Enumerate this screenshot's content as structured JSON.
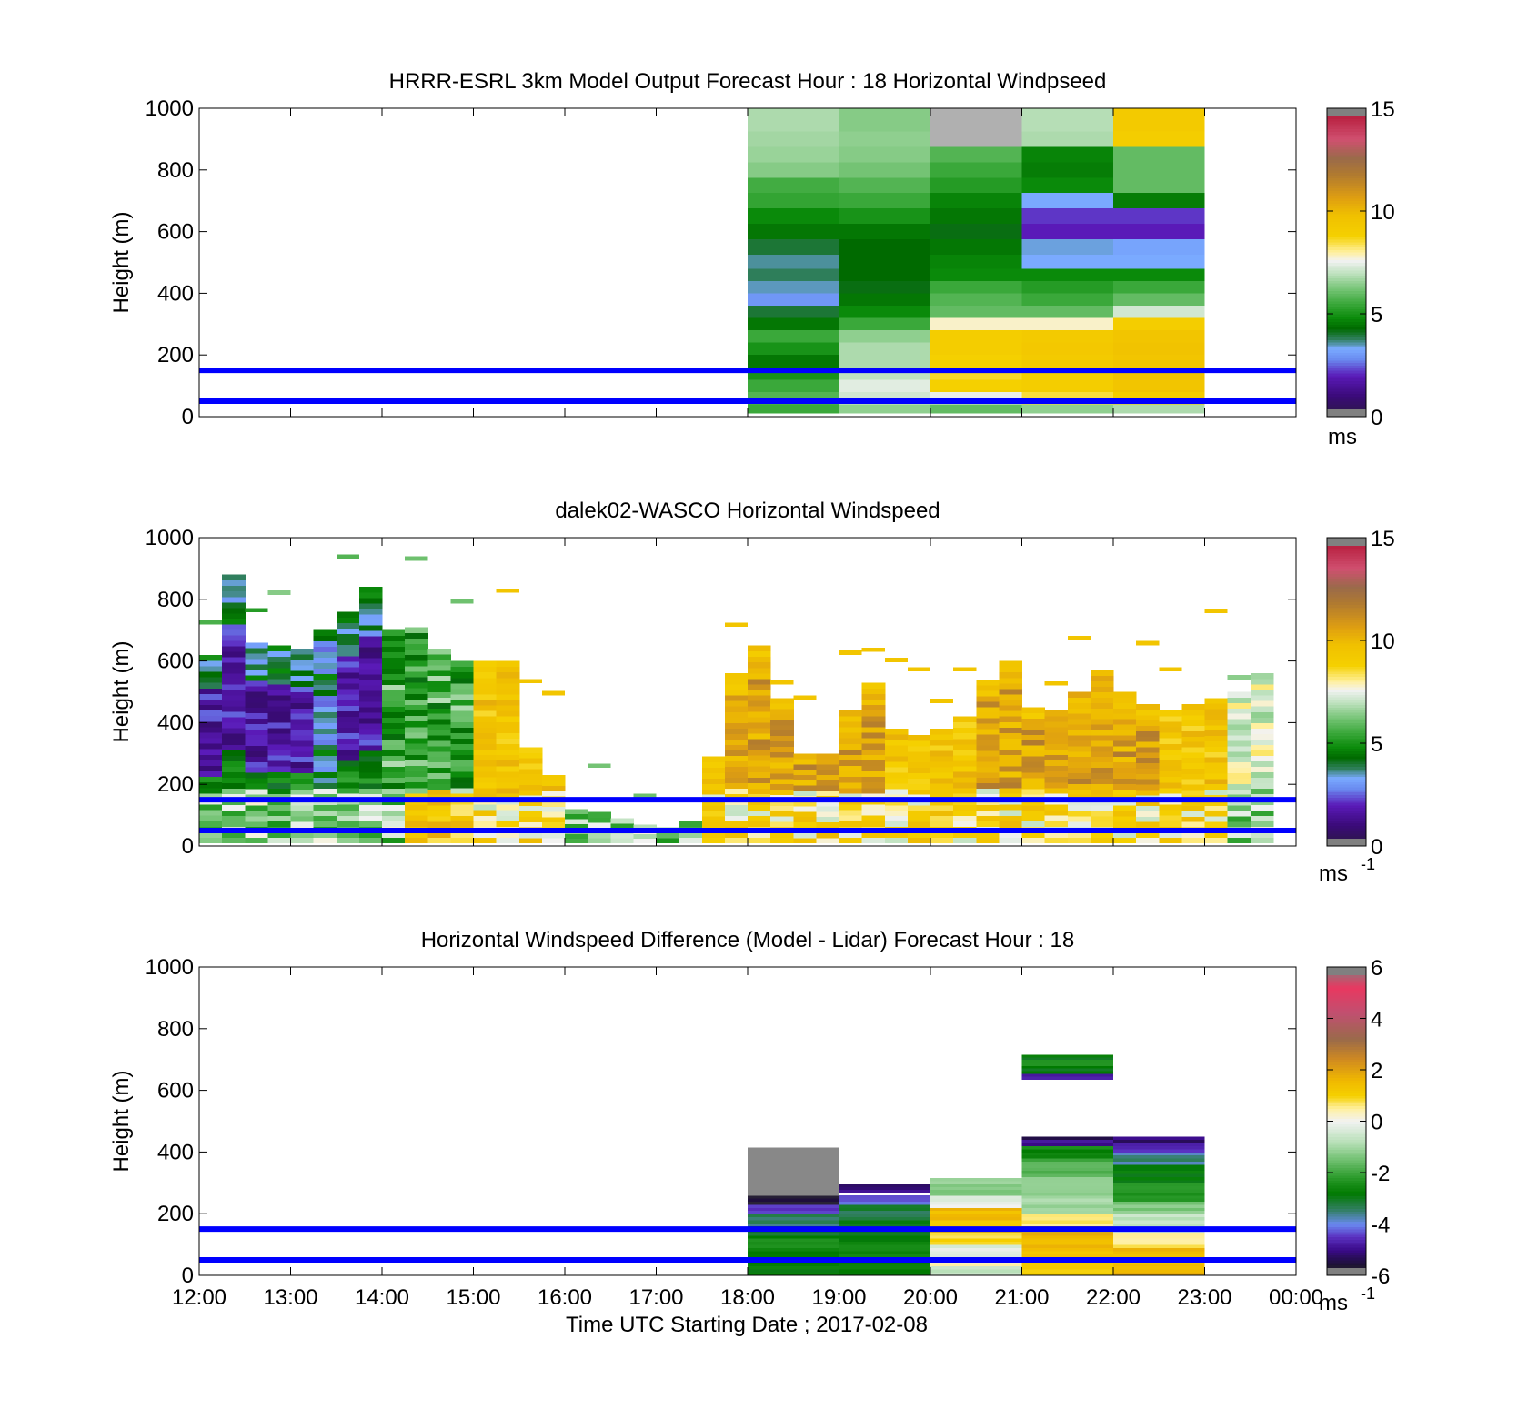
{
  "colors": {
    "ref_line": "#0000ff",
    "speed_colormap": [
      "#1a1030",
      "#3a0a78",
      "#5a1ab8",
      "#6a8af0",
      "#9fc8ff",
      "#2e8b57",
      "#006400",
      "#0a8a0a",
      "#3aa83a",
      "#7cc77c",
      "#c8e6c8",
      "#f0f0f0",
      "#fff2a8",
      "#f5d000",
      "#e8a800",
      "#c8821a",
      "#9a6a3a",
      "#c86070",
      "#e83860",
      "#a0a0a0"
    ],
    "diff_colormap": [
      "#808080",
      "#1a1030",
      "#4a14a0",
      "#6a8af0",
      "#2e8b57",
      "#007a00",
      "#3aa83a",
      "#a8d8a8",
      "#f0f0f0",
      "#fff2a8",
      "#f5d000",
      "#e8a800",
      "#c8821a",
      "#9a6a3a",
      "#e83860",
      "#808080"
    ]
  },
  "chart_data": [
    {
      "type": "heatmap",
      "title": "HRRR-ESRL 3km Model Output   Forecast Hour : 18 Horizontal Windpseed",
      "ylabel": "Height (m)",
      "xlabel": "",
      "ylim": [
        0,
        1000
      ],
      "yticks": [
        "0",
        "200",
        "400",
        "600",
        "800",
        "1000"
      ],
      "xlim": [
        "12:00",
        "00:00"
      ],
      "x_hours": [
        18,
        19,
        20,
        21,
        22
      ],
      "y_bins": [
        20,
        60,
        100,
        140,
        180,
        220,
        260,
        300,
        340,
        380,
        420,
        460,
        500,
        550,
        600,
        650,
        700,
        750,
        800,
        850,
        900,
        950
      ],
      "values": [
        [
          5.5,
          6.5,
          6.0,
          6.5,
          6.8
        ],
        [
          5.8,
          7.2,
          7.5,
          8.5,
          9.0
        ],
        [
          5.5,
          7.4,
          8.8,
          9.0,
          9.5
        ],
        [
          5.0,
          7.0,
          8.6,
          9.0,
          9.6
        ],
        [
          4.5,
          6.8,
          8.8,
          9.2,
          9.5
        ],
        [
          5.0,
          6.8,
          9.0,
          9.3,
          9.6
        ],
        [
          5.5,
          6.5,
          9.0,
          9.2,
          9.5
        ],
        [
          4.5,
          5.5,
          7.8,
          7.8,
          9.0
        ],
        [
          4.0,
          4.8,
          6.0,
          6.0,
          7.2
        ],
        [
          3.0,
          4.5,
          5.8,
          5.5,
          6.0
        ],
        [
          3.5,
          4.2,
          5.5,
          5.2,
          5.5
        ],
        [
          3.8,
          4.3,
          4.8,
          4.8,
          4.8
        ],
        [
          3.6,
          4.3,
          4.7,
          3.3,
          3.3
        ],
        [
          4.0,
          4.3,
          4.5,
          3.4,
          3.2
        ],
        [
          4.5,
          4.5,
          4.2,
          2.0,
          2.0
        ],
        [
          4.8,
          5.0,
          4.5,
          2.2,
          2.2
        ],
        [
          5.4,
          5.5,
          4.7,
          3.3,
          4.6
        ],
        [
          5.6,
          5.8,
          5.2,
          4.8,
          6.0
        ],
        [
          6.4,
          6.2,
          5.5,
          4.6,
          6.0
        ],
        [
          6.6,
          6.4,
          5.8,
          4.7,
          6.0
        ],
        [
          6.7,
          6.5,
          19.0,
          6.8,
          9.0
        ],
        [
          6.8,
          6.4,
          19.0,
          6.9,
          9.2
        ]
      ],
      "colorbar": {
        "ticks": [
          "0",
          "5",
          "10",
          "15"
        ],
        "range": [
          0,
          15
        ],
        "unit": "ms"
      },
      "ref_lines_m": [
        50,
        150
      ]
    },
    {
      "type": "heatmap",
      "title": "dalek02-WASCO  Horizontal Windspeed",
      "ylabel": "Height (m)",
      "xlabel": "",
      "ylim": [
        0,
        1000
      ],
      "yticks": [
        "0",
        "200",
        "400",
        "600",
        "800",
        "1000"
      ],
      "xlim": [
        "12:00",
        "00:00"
      ],
      "segments": [
        {
          "t": 12.0,
          "top": 620,
          "lowcol": "green",
          "mid": "purple"
        },
        {
          "t": 12.25,
          "top": 880,
          "lowcol": "green",
          "mid": "purple"
        },
        {
          "t": 12.5,
          "top": 660,
          "lowcol": "green",
          "mid": "purple"
        },
        {
          "t": 12.75,
          "top": 650,
          "lowcol": "green",
          "mid": "purple"
        },
        {
          "t": 13.0,
          "top": 640,
          "lowcol": "green",
          "mid": "purple"
        },
        {
          "t": 13.25,
          "top": 700,
          "lowcol": "green",
          "mid": "blue"
        },
        {
          "t": 13.5,
          "top": 760,
          "lowcol": "green",
          "mid": "purple"
        },
        {
          "t": 13.75,
          "top": 840,
          "lowcol": "green",
          "mid": "purple"
        },
        {
          "t": 14.0,
          "top": 700,
          "lowcol": "green",
          "mid": "green"
        },
        {
          "t": 14.25,
          "top": 710,
          "lowcol": "yellow",
          "mid": "green"
        },
        {
          "t": 14.5,
          "top": 640,
          "lowcol": "yellow",
          "mid": "green"
        },
        {
          "t": 14.75,
          "top": 600,
          "lowcol": "yellow",
          "mid": "green"
        },
        {
          "t": 15.0,
          "top": 600,
          "lowcol": "yellow",
          "mid": "yellow"
        },
        {
          "t": 15.25,
          "top": 600,
          "lowcol": "yellow",
          "mid": "yellow"
        },
        {
          "t": 15.5,
          "top": 320,
          "lowcol": "yellow",
          "mid": "yellow"
        },
        {
          "t": 15.75,
          "top": 230,
          "lowcol": "yellow",
          "mid": "yellow"
        },
        {
          "t": 16.0,
          "top": 120,
          "lowcol": "green",
          "mid": "green"
        },
        {
          "t": 16.25,
          "top": 110,
          "lowcol": "green",
          "mid": "green"
        },
        {
          "t": 16.5,
          "top": 90,
          "lowcol": "green",
          "mid": "green"
        },
        {
          "t": 16.75,
          "top": 70,
          "lowcol": "green",
          "mid": "green"
        },
        {
          "t": 17.0,
          "top": 60,
          "lowcol": "green",
          "mid": "green"
        },
        {
          "t": 17.25,
          "top": 80,
          "lowcol": "green",
          "mid": "green"
        },
        {
          "t": 17.5,
          "top": 290,
          "lowcol": "yellow",
          "mid": "yellow"
        },
        {
          "t": 17.75,
          "top": 560,
          "lowcol": "yellow",
          "mid": "brown"
        },
        {
          "t": 18.0,
          "top": 650,
          "lowcol": "yellow",
          "mid": "brown"
        },
        {
          "t": 18.25,
          "top": 480,
          "lowcol": "yellow",
          "mid": "brown"
        },
        {
          "t": 18.5,
          "top": 300,
          "lowcol": "yellow",
          "mid": "brown"
        },
        {
          "t": 18.75,
          "top": 300,
          "lowcol": "yellow",
          "mid": "brown"
        },
        {
          "t": 19.0,
          "top": 440,
          "lowcol": "yellow",
          "mid": "brown"
        },
        {
          "t": 19.25,
          "top": 530,
          "lowcol": "yellow",
          "mid": "brown"
        },
        {
          "t": 19.5,
          "top": 380,
          "lowcol": "yellow",
          "mid": "yellow"
        },
        {
          "t": 19.75,
          "top": 360,
          "lowcol": "yellow",
          "mid": "yellow"
        },
        {
          "t": 20.0,
          "top": 380,
          "lowcol": "yellow",
          "mid": "yellow"
        },
        {
          "t": 20.25,
          "top": 420,
          "lowcol": "yellow",
          "mid": "yellow"
        },
        {
          "t": 20.5,
          "top": 540,
          "lowcol": "yellow",
          "mid": "brown"
        },
        {
          "t": 20.75,
          "top": 600,
          "lowcol": "yellow",
          "mid": "brown"
        },
        {
          "t": 21.0,
          "top": 450,
          "lowcol": "yellow",
          "mid": "brown"
        },
        {
          "t": 21.25,
          "top": 440,
          "lowcol": "yellow",
          "mid": "brown"
        },
        {
          "t": 21.5,
          "top": 500,
          "lowcol": "yellow",
          "mid": "brown"
        },
        {
          "t": 21.75,
          "top": 570,
          "lowcol": "yellow",
          "mid": "brown"
        },
        {
          "t": 22.0,
          "top": 500,
          "lowcol": "yellow",
          "mid": "brown"
        },
        {
          "t": 22.25,
          "top": 460,
          "lowcol": "yellow",
          "mid": "brown"
        },
        {
          "t": 22.5,
          "top": 440,
          "lowcol": "yellow",
          "mid": "yellow"
        },
        {
          "t": 22.75,
          "top": 460,
          "lowcol": "yellow",
          "mid": "yellow"
        },
        {
          "t": 23.0,
          "top": 480,
          "lowcol": "yellow",
          "mid": "yellow"
        },
        {
          "t": 23.25,
          "top": 500,
          "lowcol": "green",
          "mid": "white"
        },
        {
          "t": 23.5,
          "top": 560,
          "lowcol": "green",
          "mid": "white"
        },
        {
          "t": 23.75,
          "top": 0,
          "lowcol": "green",
          "mid": "green"
        }
      ],
      "colorbar": {
        "ticks": [
          "0",
          "5",
          "10",
          "15"
        ],
        "range": [
          0,
          15
        ],
        "unit": "ms",
        "unit_sup": "-1"
      },
      "ref_lines_m": [
        50,
        150
      ]
    },
    {
      "type": "heatmap",
      "title": "Horizontal Windspeed Difference (Model - Lidar) Forecast Hour : 18",
      "ylabel": "Height (m)",
      "xlabel": "Time UTC  Starting Date ; 2017-02-08",
      "ylim": [
        0,
        1000
      ],
      "yticks": [
        "0",
        "200",
        "400",
        "600",
        "800",
        "1000"
      ],
      "xticks": [
        "12:00",
        "13:00",
        "14:00",
        "15:00",
        "16:00",
        "17:00",
        "18:00",
        "19:00",
        "20:00",
        "21:00",
        "22:00",
        "23:00",
        "00:00"
      ],
      "blocks": [
        {
          "h": 18,
          "bins": [
            [
              0,
              40,
              -2.8
            ],
            [
              40,
              80,
              -2.6
            ],
            [
              80,
              120,
              -2.5
            ],
            [
              120,
              160,
              -3.0
            ],
            [
              160,
              200,
              -3.4
            ],
            [
              200,
              230,
              -4.5
            ],
            [
              230,
              260,
              -5.6
            ],
            [
              260,
              415,
              6.5
            ]
          ]
        },
        {
          "h": 19,
          "bins": [
            [
              0,
              60,
              -2.8
            ],
            [
              60,
              120,
              -2.7
            ],
            [
              120,
              180,
              -2.8
            ],
            [
              180,
              230,
              -3.2
            ],
            [
              230,
              260,
              -4.2
            ],
            [
              270,
              295,
              -5.0
            ]
          ]
        },
        {
          "h": 20,
          "bins": [
            [
              0,
              30,
              -0.6
            ],
            [
              30,
              60,
              0.4
            ],
            [
              60,
              100,
              -0.2
            ],
            [
              100,
              140,
              0.8
            ],
            [
              140,
              180,
              1.2
            ],
            [
              180,
              220,
              1.5
            ],
            [
              220,
              260,
              -0.2
            ],
            [
              260,
              315,
              -1.2
            ]
          ]
        },
        {
          "h": 21,
          "bins": [
            [
              0,
              40,
              1.2
            ],
            [
              40,
              80,
              1.4
            ],
            [
              80,
              120,
              1.6
            ],
            [
              120,
              160,
              1.6
            ],
            [
              160,
              200,
              0.6
            ],
            [
              200,
              260,
              -1.0
            ],
            [
              260,
              320,
              -1.3
            ],
            [
              320,
              380,
              -1.8
            ],
            [
              380,
              420,
              -2.6
            ],
            [
              420,
              440,
              -4.8
            ],
            [
              440,
              450,
              -5.6
            ],
            [
              635,
              655,
              -4.8
            ],
            [
              655,
              680,
              -2.8
            ],
            [
              680,
              700,
              -2.2
            ],
            [
              700,
              715,
              -2.8
            ]
          ]
        },
        {
          "h": 22,
          "bins": [
            [
              0,
              40,
              1.6
            ],
            [
              40,
              90,
              1.5
            ],
            [
              90,
              140,
              0.7
            ],
            [
              140,
              200,
              -0.6
            ],
            [
              200,
              240,
              -1.4
            ],
            [
              240,
              300,
              -2.2
            ],
            [
              300,
              360,
              -2.8
            ],
            [
              360,
              400,
              -3.6
            ],
            [
              400,
              430,
              -4.6
            ],
            [
              430,
              450,
              -5.2
            ]
          ]
        }
      ],
      "colorbar": {
        "ticks": [
          "-6",
          "-4",
          "-2",
          "0",
          "2",
          "4",
          "6"
        ],
        "range": [
          -6,
          6
        ],
        "unit": "ms",
        "unit_sup": "-1"
      },
      "ref_lines_m": [
        50,
        150
      ]
    }
  ]
}
